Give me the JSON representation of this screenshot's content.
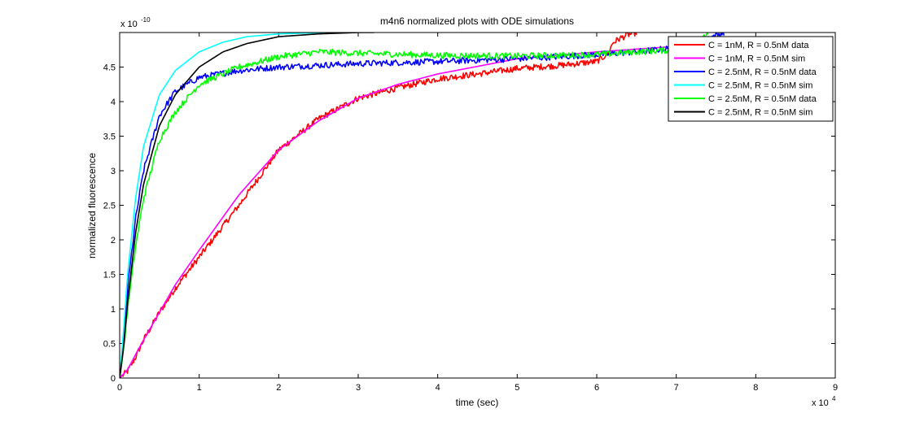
{
  "chart_data": {
    "type": "line",
    "title": "m4n6 normalized plots with ODE simulations",
    "xlabel": "time (sec)",
    "ylabel": "normalized fluorescence",
    "x_multiplier": "x 10",
    "x_multiplier_exp": "4",
    "y_multiplier": "x 10",
    "y_multiplier_exp": "-10",
    "xlim": [
      0,
      9
    ],
    "ylim": [
      0,
      5
    ],
    "x_ticks": [
      "0",
      "1",
      "2",
      "3",
      "4",
      "5",
      "6",
      "7",
      "8",
      "9"
    ],
    "y_ticks": [
      "0",
      "0.5",
      "1",
      "1.5",
      "2",
      "2.5",
      "3",
      "3.5",
      "4",
      "4.5"
    ],
    "legend_position": "top-right",
    "grid": false,
    "series": [
      {
        "name": "C = 1nM, R = 0.5nM data",
        "color": "#ff0000",
        "noisy": true,
        "x": [
          0,
          0.1,
          0.2,
          0.3,
          0.5,
          0.7,
          1.0,
          1.5,
          2.0,
          2.5,
          3.0,
          3.5,
          4.0,
          4.5,
          5.0,
          5.5,
          6.0,
          6.15,
          6.2,
          6.3,
          6.4,
          6.5
        ],
        "y": [
          0,
          0.1,
          0.3,
          0.55,
          0.95,
          1.3,
          1.75,
          2.5,
          3.3,
          3.75,
          4.05,
          4.2,
          4.33,
          4.4,
          4.48,
          4.52,
          4.58,
          4.7,
          4.85,
          4.92,
          4.97,
          5.0
        ]
      },
      {
        "name": "C = 1nM, R = 0.5nM sim",
        "color": "#ff00ff",
        "noisy": false,
        "x": [
          0,
          0.1,
          0.2,
          0.3,
          0.5,
          0.7,
          1.0,
          1.5,
          2.0,
          2.5,
          3.0,
          3.5,
          4.0,
          5.0,
          6.0,
          7.0,
          8.0,
          8.7
        ],
        "y": [
          0,
          0.12,
          0.34,
          0.55,
          0.95,
          1.35,
          1.85,
          2.65,
          3.3,
          3.72,
          4.05,
          4.25,
          4.4,
          4.62,
          4.72,
          4.8,
          4.87,
          4.9
        ]
      },
      {
        "name": "C = 2.5nM, R = 0.5nM data",
        "color": "#0000ff",
        "noisy": true,
        "x": [
          0,
          0.05,
          0.1,
          0.2,
          0.3,
          0.5,
          0.7,
          1.0,
          1.5,
          2.0,
          3.0,
          4.0,
          5.0,
          6.0,
          6.5,
          7.0,
          7.4,
          7.6
        ],
        "y": [
          0,
          0.5,
          1.3,
          2.3,
          3.0,
          3.8,
          4.15,
          4.35,
          4.45,
          4.5,
          4.55,
          4.58,
          4.62,
          4.68,
          4.72,
          4.78,
          4.92,
          5.0
        ]
      },
      {
        "name": "C = 2.5nM, R = 0.5nM sim",
        "color": "#00ffff",
        "noisy": false,
        "x": [
          0,
          0.05,
          0.1,
          0.2,
          0.3,
          0.5,
          0.7,
          1.0,
          1.3,
          1.6,
          2.0,
          2.6
        ],
        "y": [
          0,
          0.7,
          1.5,
          2.6,
          3.35,
          4.1,
          4.45,
          4.72,
          4.86,
          4.94,
          4.98,
          5.0
        ]
      },
      {
        "name": "C = 2.5nM, R = 0.5nM data",
        "color": "#00ff00",
        "noisy": true,
        "x": [
          0,
          0.05,
          0.1,
          0.2,
          0.3,
          0.5,
          0.7,
          1.0,
          1.5,
          2.0,
          2.5,
          3.0,
          4.0,
          5.0,
          6.0,
          6.5,
          7.0,
          7.3,
          7.4
        ],
        "y": [
          0,
          0.4,
          1.0,
          1.9,
          2.6,
          3.45,
          3.85,
          4.25,
          4.5,
          4.65,
          4.72,
          4.7,
          4.67,
          4.66,
          4.68,
          4.72,
          4.75,
          4.85,
          5.0
        ]
      },
      {
        "name": "C = 2.5nM, R = 0.5nM sim",
        "color": "#000000",
        "noisy": false,
        "x": [
          0,
          0.05,
          0.1,
          0.2,
          0.3,
          0.5,
          0.7,
          1.0,
          1.3,
          1.6,
          2.0,
          2.5,
          3.0,
          3.2
        ],
        "y": [
          0,
          0.45,
          1.1,
          2.1,
          2.8,
          3.65,
          4.1,
          4.5,
          4.72,
          4.84,
          4.94,
          4.98,
          5.0,
          5.0
        ]
      }
    ]
  }
}
